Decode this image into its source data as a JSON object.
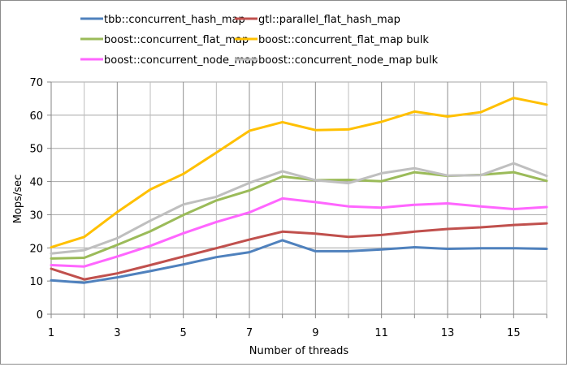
{
  "chart_data": {
    "type": "line",
    "title": "",
    "xlabel": "Number of threads",
    "ylabel": "Mops/sec",
    "x": [
      1,
      2,
      3,
      4,
      5,
      6,
      7,
      8,
      9,
      10,
      11,
      12,
      13,
      14,
      15,
      16
    ],
    "xlim": [
      1,
      16
    ],
    "ylim": [
      0,
      70
    ],
    "x_ticks": [
      "1",
      "3",
      "5",
      "7",
      "9",
      "11",
      "13",
      "15"
    ],
    "y_ticks": [
      "0",
      "10",
      "20",
      "30",
      "40",
      "50",
      "60",
      "70"
    ],
    "grid": true,
    "legend_position": "top",
    "series": [
      {
        "name": "tbb::concurrent_hash_map",
        "color": "#4F81BD",
        "values": [
          10.2,
          9.5,
          11.1,
          13.0,
          15.0,
          17.2,
          18.7,
          22.3,
          19.0,
          19.0,
          19.5,
          20.2,
          19.7,
          19.9,
          19.9,
          19.7
        ]
      },
      {
        "name": "gtl::parallel_flat_hash_map",
        "color": "#C0504D",
        "values": [
          13.7,
          10.5,
          12.3,
          14.8,
          17.4,
          19.9,
          22.5,
          24.9,
          24.3,
          23.3,
          23.9,
          24.9,
          25.7,
          26.2,
          26.9,
          27.4
        ]
      },
      {
        "name": "boost::concurrent_flat_map",
        "color": "#9BBB59",
        "values": [
          16.8,
          17.0,
          20.9,
          25.0,
          29.9,
          34.3,
          37.3,
          41.5,
          40.4,
          40.5,
          40.1,
          42.8,
          41.7,
          42.0,
          42.8,
          40.2
        ]
      },
      {
        "name": "boost::concurrent_flat_map bulk",
        "color": "#FFC000",
        "values": [
          20.2,
          23.3,
          30.8,
          37.6,
          42.3,
          48.7,
          55.3,
          57.9,
          55.5,
          55.7,
          58.0,
          61.1,
          59.6,
          60.9,
          65.2,
          63.2
        ]
      },
      {
        "name": "boost::concurrent_node_map",
        "color": "#FF66FF",
        "values": [
          14.8,
          14.4,
          17.4,
          20.6,
          24.4,
          27.8,
          30.7,
          34.9,
          33.8,
          32.5,
          32.1,
          33.0,
          33.4,
          32.5,
          31.7,
          32.3
        ]
      },
      {
        "name": "boost::concurrent_node_map bulk",
        "color": "#BFBFBF",
        "values": [
          18.3,
          19.3,
          22.9,
          28.2,
          33.1,
          35.4,
          39.6,
          43.1,
          40.4,
          39.5,
          42.5,
          44.0,
          41.8,
          41.9,
          45.5,
          41.7
        ]
      }
    ]
  },
  "legend": {
    "items": [
      {
        "label": "tbb::concurrent_hash_map"
      },
      {
        "label": "gtl::parallel_flat_hash_map"
      },
      {
        "label": "boost::concurrent_flat_map"
      },
      {
        "label": "boost::concurrent_flat_map bulk"
      },
      {
        "label": "boost::concurrent_node_map"
      },
      {
        "label": "boost::concurrent_node_map bulk"
      }
    ]
  },
  "axes": {
    "xlabel": "Number of threads",
    "ylabel": "Mops/sec"
  }
}
